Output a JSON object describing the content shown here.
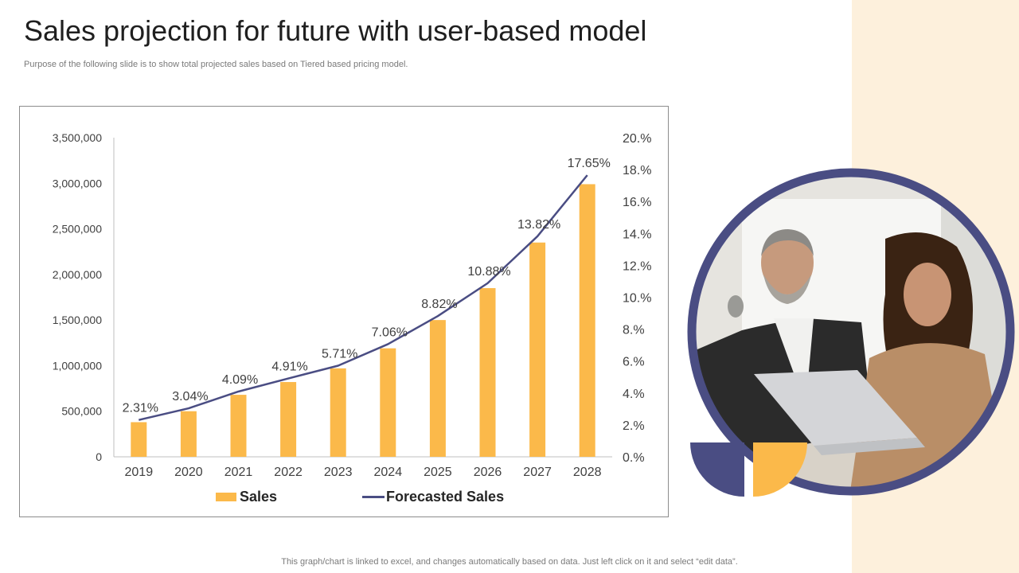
{
  "page": {
    "title": "Sales projection for future with user-based model",
    "subtitle": "Purpose of the following slide is to show total projected sales based on Tiered based pricing model.",
    "footer": "This graph/chart is linked to excel,  and changes automatically based on data. Just left click on it and select “edit data”."
  },
  "colors": {
    "bar": "#fbb94a",
    "line": "#4a4d83",
    "band": "#fdf0dc",
    "ring": "#4a4d83"
  },
  "chart_data": {
    "type": "bar",
    "categories": [
      "2019",
      "2020",
      "2021",
      "2022",
      "2023",
      "2024",
      "2025",
      "2026",
      "2027",
      "2028"
    ],
    "series": [
      {
        "name": "Sales",
        "type": "bar",
        "axis": "left",
        "values": [
          380000,
          500000,
          680000,
          820000,
          970000,
          1190000,
          1500000,
          1850000,
          2350000,
          2990000
        ]
      },
      {
        "name": "Forecasted Sales",
        "type": "line",
        "axis": "right",
        "values": [
          2.31,
          3.04,
          4.09,
          4.91,
          5.71,
          7.06,
          8.82,
          10.88,
          13.82,
          17.65
        ]
      }
    ],
    "data_labels": [
      "2.31%",
      "3.04%",
      "4.09%",
      "4.91%",
      "5.71%",
      "7.06%",
      "8.82%",
      "10.88%",
      "13.82%",
      "17.65%"
    ],
    "left_axis": {
      "ylim": [
        0,
        3500000
      ],
      "ticks": [
        0,
        500000,
        1000000,
        1500000,
        2000000,
        2500000,
        3000000,
        3500000
      ],
      "tick_labels": [
        "0",
        "500,000",
        "1,000,000",
        "1,500,000",
        "2,000,000",
        "2,500,000",
        "3,000,000",
        "3,500,000"
      ]
    },
    "right_axis": {
      "ylim": [
        0,
        20
      ],
      "ticks": [
        0,
        2,
        4,
        6,
        8,
        10,
        12,
        14,
        16,
        18,
        20
      ],
      "tick_labels": [
        "0.%",
        "2.%",
        "4.%",
        "6.%",
        "8.%",
        "10.%",
        "12.%",
        "14.%",
        "16.%",
        "18.%",
        "20.%"
      ]
    },
    "legend": [
      {
        "label": "Sales",
        "kind": "bar"
      },
      {
        "label": "Forecasted Sales",
        "kind": "line"
      }
    ],
    "legend_position": "bottom",
    "grid": false
  }
}
